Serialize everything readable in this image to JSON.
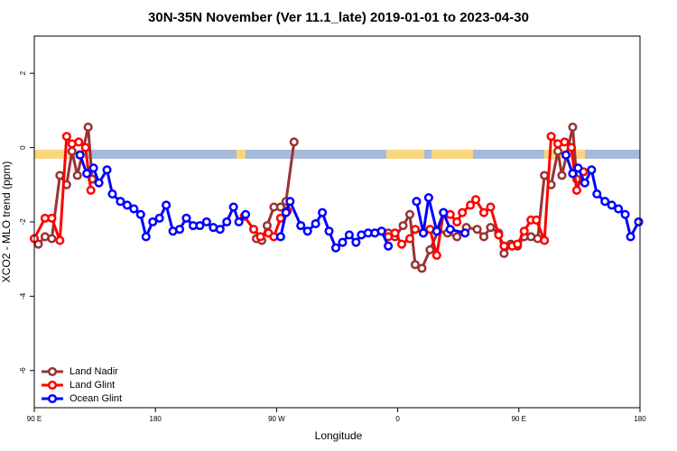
{
  "chart_data": {
    "type": "line",
    "title": "30N-35N November (Ver 11.1_late)   2019-01-01 to 2023-04-30",
    "xlabel": "Longitude",
    "ylabel": "XCO2 - MLO trend (ppm)",
    "xlim": [
      90,
      540
    ],
    "xticks": [
      {
        "value": 90,
        "label": "90 E"
      },
      {
        "value": 180,
        "label": "180"
      },
      {
        "value": 270,
        "label": "90 W"
      },
      {
        "value": 360,
        "label": "0"
      },
      {
        "value": 450,
        "label": "90 E"
      },
      {
        "value": 540,
        "label": "180"
      }
    ],
    "ylim": [
      -7,
      3
    ],
    "yticks": [
      -6,
      -4,
      -2,
      0,
      2
    ],
    "legend": "bottom-left",
    "series": [
      {
        "name": "Land Nadir",
        "color": "#993333",
        "x": [
          93,
          98,
          103,
          109,
          114,
          118,
          122,
          130,
          133,
          null,
          255,
          259,
          263,
          268,
          273,
          277,
          283,
          null,
          353,
          358,
          364,
          369,
          373,
          378,
          384,
          390,
          397,
          404,
          411,
          419,
          424,
          429,
          435,
          439,
          444,
          449,
          454,
          459,
          464,
          469,
          474,
          479,
          482,
          490,
          493
        ],
        "values": [
          -2.6,
          -2.4,
          -2.45,
          -0.75,
          -1.0,
          -0.1,
          -0.75,
          0.55,
          -0.85,
          null,
          -2.45,
          -2.5,
          -2.1,
          -1.6,
          -1.6,
          -1.45,
          0.15,
          null,
          -2.3,
          -2.4,
          -2.1,
          -1.8,
          -3.15,
          -3.25,
          -2.75,
          -2.25,
          -2.3,
          -2.4,
          -2.15,
          -2.2,
          -2.4,
          -2.15,
          -2.3,
          -2.85,
          -2.6,
          -2.65,
          -2.4,
          -2.4,
          -2.45,
          -0.75,
          -1.0,
          -0.1,
          -0.75,
          0.55,
          -0.85
        ]
      },
      {
        "name": "Land Glint",
        "color": "#ff0000",
        "x": [
          90,
          98,
          103,
          109,
          114,
          118,
          123,
          128,
          132,
          null,
          246,
          253,
          258,
          264,
          268,
          273,
          278,
          null,
          353,
          358,
          363,
          369,
          373,
          379,
          384,
          389,
          394,
          399,
          404,
          408,
          414,
          418,
          424,
          429,
          435,
          439,
          445,
          449,
          454,
          459,
          463,
          469,
          474,
          479,
          484,
          489,
          493,
          498
        ],
        "values": [
          -2.45,
          -1.9,
          -1.9,
          -2.5,
          0.3,
          0.1,
          0.15,
          0,
          -1.15,
          null,
          -1.85,
          -2.2,
          -2.4,
          -2.3,
          -2.4,
          -1.9,
          -1.7,
          null,
          -2.4,
          -2.3,
          -2.6,
          -2.45,
          -2.2,
          -2.3,
          -2.2,
          -2.9,
          -1.75,
          -1.8,
          -2.0,
          -1.75,
          -1.55,
          -1.4,
          -1.75,
          -1.6,
          -2.35,
          -2.65,
          -2.65,
          -2.6,
          -2.25,
          -1.95,
          -1.95,
          -2.5,
          0.3,
          0.1,
          0.15,
          0,
          -1.15,
          -0.65
        ]
      },
      {
        "name": "Ocean Glint",
        "color": "#0000ff",
        "x": [
          124,
          129,
          134,
          138,
          144,
          148,
          154,
          159,
          164,
          169,
          173,
          178,
          183,
          188,
          193,
          198,
          203,
          208,
          213,
          218,
          223,
          228,
          233,
          238,
          242,
          247,
          null,
          273,
          277,
          280,
          288,
          293,
          299,
          304,
          309,
          314,
          319,
          324,
          329,
          333,
          338,
          343,
          348,
          353,
          null,
          374,
          379,
          383,
          389,
          394,
          399,
          410,
          null,
          485,
          490,
          494,
          499,
          504,
          508,
          514,
          519,
          524,
          529,
          533,
          539
        ],
        "values": [
          -0.2,
          -0.7,
          -0.55,
          -0.95,
          -0.6,
          -1.25,
          -1.45,
          -1.55,
          -1.65,
          -1.8,
          -2.4,
          -2.0,
          -1.9,
          -1.55,
          -2.25,
          -2.2,
          -1.9,
          -2.1,
          -2.1,
          -2.0,
          -2.15,
          -2.2,
          -2.0,
          -1.6,
          -2.0,
          -1.8,
          null,
          -2.4,
          -1.75,
          -1.45,
          -2.1,
          -2.25,
          -2.05,
          -1.75,
          -2.25,
          -2.7,
          -2.55,
          -2.35,
          -2.55,
          -2.35,
          -2.3,
          -2.3,
          -2.25,
          -2.65,
          null,
          -1.45,
          -2.3,
          -1.35,
          -2.25,
          -1.75,
          -2.2,
          -2.3,
          null,
          -0.2,
          -0.7,
          -0.55,
          -0.95,
          -0.6,
          -1.25,
          -1.45,
          -1.55,
          -1.65,
          -1.8,
          -2.4,
          -2.0
        ]
      }
    ]
  }
}
